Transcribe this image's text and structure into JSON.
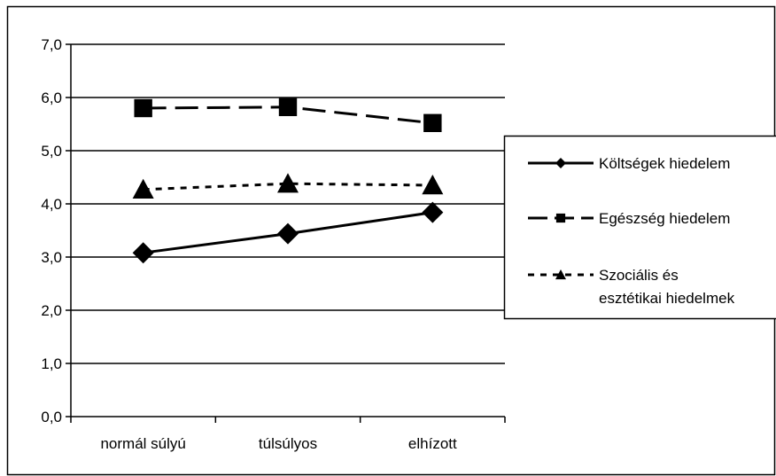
{
  "chart_data": {
    "type": "line",
    "title": "",
    "xlabel": "",
    "ylabel": "",
    "categories": [
      "normál súlyú",
      "túlsúlyos",
      "elhízott"
    ],
    "ylim": [
      0,
      7
    ],
    "y_ticks": [
      "0,0",
      "1,0",
      "2,0",
      "3,0",
      "4,0",
      "5,0",
      "6,0",
      "7,0"
    ],
    "grid": "horizontal",
    "legend_position": "right",
    "series": [
      {
        "name": "Költségek hiedelem",
        "values": [
          3.08,
          3.44,
          3.84
        ],
        "line_style": "solid",
        "marker": "diamond",
        "color": "#000000"
      },
      {
        "name": "Egészség hiedelem",
        "values": [
          5.8,
          5.82,
          5.52
        ],
        "line_style": "long-dash",
        "marker": "square",
        "color": "#000000"
      },
      {
        "name_lines": [
          "Szociális és",
          "esztétikai hiedelmek"
        ],
        "values": [
          4.27,
          4.38,
          4.35
        ],
        "line_style": "dotted",
        "marker": "triangle",
        "color": "#000000"
      }
    ]
  }
}
